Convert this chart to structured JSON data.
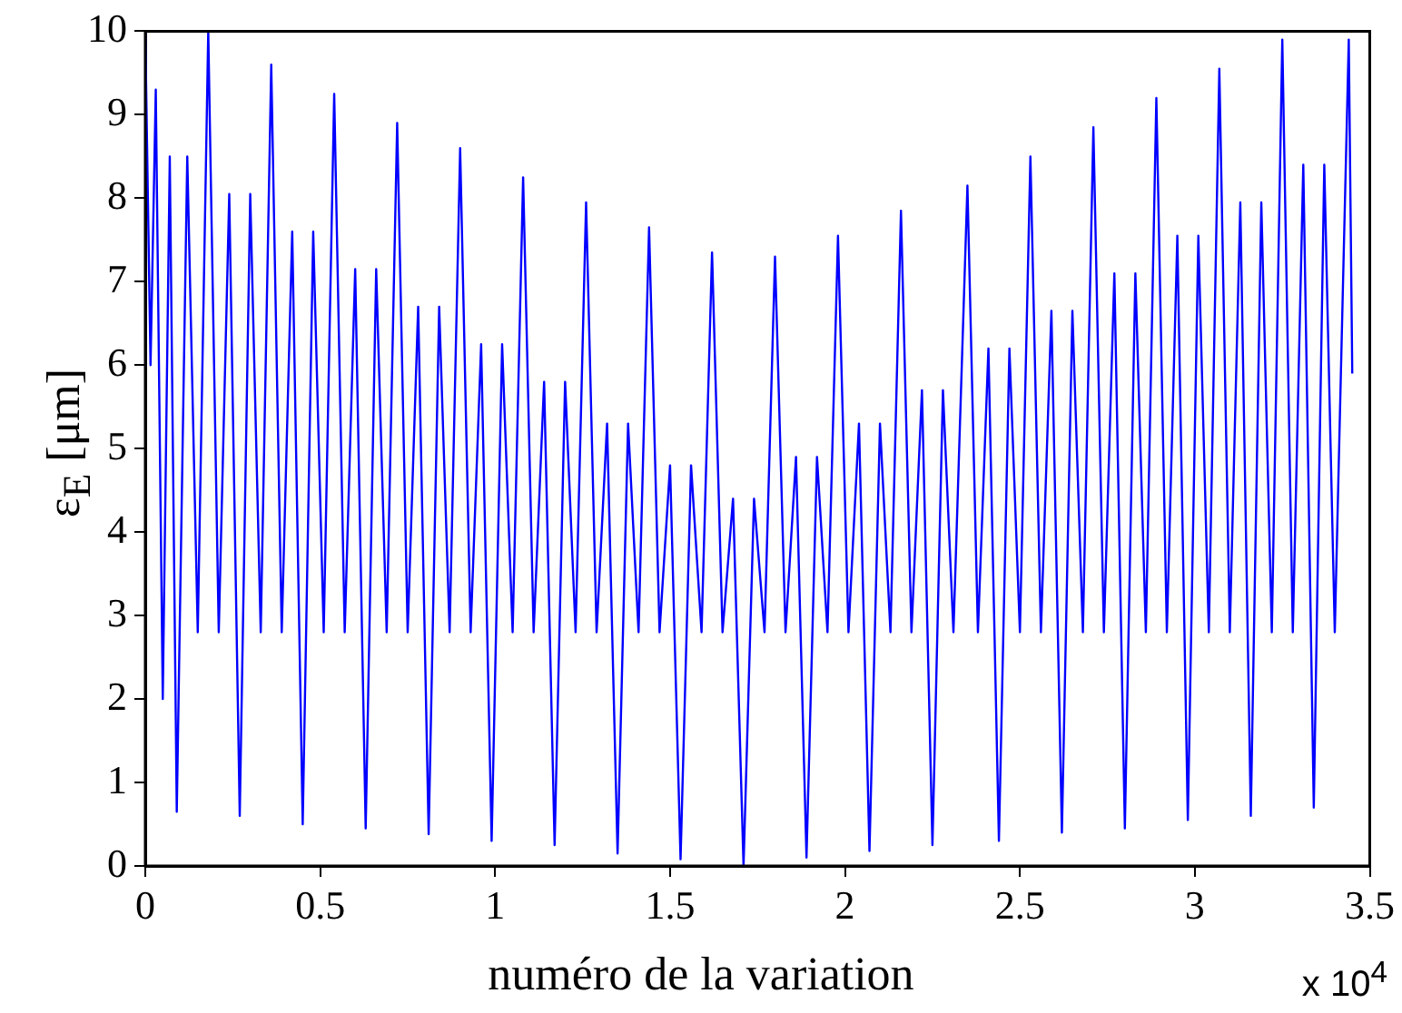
{
  "chart_data": {
    "type": "line",
    "xlabel": "numéro de la variation",
    "ylabel": "ε$_{E}$ [μm]",
    "annotations": [
      "x 10$^{4}$"
    ],
    "xlim": [
      0,
      3.5
    ],
    "xticks": [
      0,
      0.5,
      1,
      1.5,
      2,
      2.5,
      3,
      3.5
    ],
    "ylim": [
      0,
      10
    ],
    "yticks": [
      0,
      1,
      2,
      3,
      4,
      5,
      6,
      7,
      8,
      9,
      10
    ],
    "marker": "none",
    "line_style": "solid",
    "series": [
      {
        "color": "#0000ff",
        "x": [
          0,
          0.015,
          0.03,
          0.05,
          0.07,
          0.09,
          0.12,
          0.15,
          0.18,
          0.21,
          0.24,
          0.27,
          0.3,
          0.33,
          0.36,
          0.39,
          0.42,
          0.45,
          0.48,
          0.51,
          0.54,
          0.57,
          0.6,
          0.63,
          0.66,
          0.69,
          0.72,
          0.75,
          0.78,
          0.81,
          0.84,
          0.87,
          0.9,
          0.93,
          0.96,
          0.99,
          1.02,
          1.05,
          1.08,
          1.11,
          1.14,
          1.17,
          1.2,
          1.23,
          1.26,
          1.29,
          1.32,
          1.35,
          1.38,
          1.41,
          1.44,
          1.47,
          1.5,
          1.53,
          1.56,
          1.59,
          1.62,
          1.65,
          1.68,
          1.71,
          1.74,
          1.77,
          1.8,
          1.83,
          1.86,
          1.89,
          1.92,
          1.95,
          1.98,
          2.01,
          2.04,
          2.07,
          2.1,
          2.13,
          2.16,
          2.19,
          2.22,
          2.25,
          2.28,
          2.31,
          2.35,
          2.38,
          2.41,
          2.44,
          2.47,
          2.5,
          2.53,
          2.56,
          2.59,
          2.62,
          2.65,
          2.68,
          2.71,
          2.74,
          2.77,
          2.8,
          2.83,
          2.86,
          2.89,
          2.92,
          2.95,
          2.98,
          3.01,
          3.04,
          3.07,
          3.1,
          3.13,
          3.16,
          3.19,
          3.22,
          3.25,
          3.28,
          3.31,
          3.34,
          3.37,
          3.4,
          3.44,
          3.45
        ],
        "values": [
          10,
          6,
          9.3,
          2,
          8.5,
          0.65,
          8.5,
          2.8,
          10,
          2.8,
          8.05,
          0.6,
          8.05,
          2.8,
          9.6,
          2.8,
          7.6,
          0.5,
          7.6,
          2.8,
          9.25,
          2.8,
          7.15,
          0.45,
          7.15,
          2.8,
          8.9,
          2.8,
          6.7,
          0.38,
          6.7,
          2.8,
          8.6,
          2.8,
          6.25,
          0.3,
          6.25,
          2.8,
          8.25,
          2.8,
          5.8,
          0.25,
          5.8,
          2.8,
          7.95,
          2.8,
          5.3,
          0.15,
          5.3,
          2.8,
          7.65,
          2.8,
          4.8,
          0.08,
          4.8,
          2.8,
          7.35,
          2.8,
          4.4,
          0,
          4.4,
          2.8,
          7.3,
          2.8,
          4.9,
          0.1,
          4.9,
          2.8,
          7.55,
          2.8,
          5.3,
          0.18,
          5.3,
          2.8,
          7.85,
          2.8,
          5.7,
          0.25,
          5.7,
          2.8,
          8.15,
          2.8,
          6.2,
          0.3,
          6.2,
          2.8,
          8.5,
          2.8,
          6.65,
          0.4,
          6.65,
          2.8,
          8.85,
          2.8,
          7.1,
          0.45,
          7.1,
          2.8,
          9.2,
          2.8,
          7.55,
          0.55,
          7.55,
          2.8,
          9.55,
          2.8,
          7.95,
          0.6,
          7.95,
          2.8,
          9.9,
          2.8,
          8.4,
          0.7,
          8.4,
          2.8,
          9.9,
          5.9
        ]
      }
    ]
  }
}
